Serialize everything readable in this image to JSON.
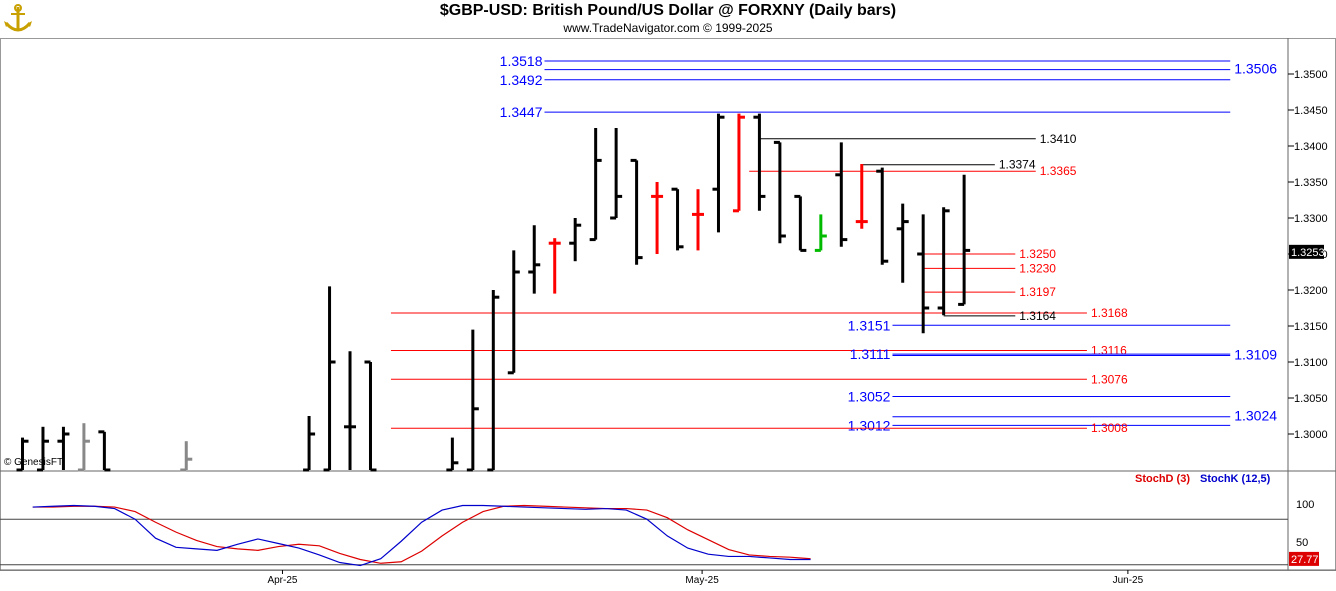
{
  "header": {
    "title": "$GBP-USD:  British Pound/US Dollar @ FORXNY  (Daily bars)",
    "subtitle": "www.TradeNavigator.com © 1999-2025",
    "watermark": "© GenesisFT",
    "logo_icon": "anchor-logo-icon"
  },
  "chart_data": [
    {
      "type": "ohlc",
      "title": "$GBP-USD:  British Pound/US Dollar @ FORXNY  (Daily bars)",
      "ylim": [
        1.295,
        1.355
      ],
      "y_ticks": [
        "1.3500",
        "1.3450",
        "1.3400",
        "1.3350",
        "1.3300",
        "1.3250",
        "1.3200",
        "1.3150",
        "1.3100",
        "1.3050",
        "1.3000"
      ],
      "x_labels": [
        {
          "label": "Apr-25",
          "bar": 12.7
        },
        {
          "label": "May-25",
          "bar": 33.2
        },
        {
          "label": "Jun-25",
          "bar": 54.0
        }
      ],
      "last_price": "1.3253",
      "colors": {
        "up": "#000000",
        "down": "#ff0000",
        "gray": "#888888"
      },
      "bars": [
        {
          "o": 1.295,
          "h": 1.2995,
          "l": 1.295,
          "c": 1.299,
          "color": "#000000"
        },
        {
          "o": 1.295,
          "h": 1.301,
          "l": 1.295,
          "c": 1.299,
          "color": "#000000"
        },
        {
          "o": 1.299,
          "h": 1.301,
          "l": 1.295,
          "c": 1.3,
          "color": "#000000"
        },
        {
          "o": 1.295,
          "h": 1.3015,
          "l": 1.295,
          "c": 1.299,
          "color": "#888888"
        },
        {
          "o": 1.3003,
          "h": 1.3003,
          "l": 1.295,
          "c": 1.295,
          "color": "#000000"
        },
        {
          "o": null,
          "h": null,
          "l": null,
          "c": null,
          "color": "#000000"
        },
        {
          "o": null,
          "h": null,
          "l": null,
          "c": null,
          "color": "#000000"
        },
        {
          "o": null,
          "h": null,
          "l": null,
          "c": null,
          "color": "#000000"
        },
        {
          "o": 1.295,
          "h": 1.299,
          "l": 1.295,
          "c": 1.2965,
          "color": "#888888"
        },
        {
          "o": null,
          "h": null,
          "l": null,
          "c": null,
          "color": "#000000"
        },
        {
          "o": null,
          "h": null,
          "l": null,
          "c": null,
          "color": "#000000"
        },
        {
          "o": null,
          "h": null,
          "l": null,
          "c": null,
          "color": "#000000"
        },
        {
          "o": null,
          "h": null,
          "l": null,
          "c": null,
          "color": "#000000"
        },
        {
          "o": null,
          "h": null,
          "l": null,
          "c": null,
          "color": "#000000"
        },
        {
          "o": 1.295,
          "h": 1.3025,
          "l": 1.295,
          "c": 1.3,
          "color": "#000000"
        },
        {
          "o": 1.295,
          "h": 1.3205,
          "l": 1.295,
          "c": 1.31,
          "color": "#000000"
        },
        {
          "o": 1.301,
          "h": 1.3115,
          "l": 1.295,
          "c": 1.301,
          "color": "#000000"
        },
        {
          "o": 1.31,
          "h": 1.31,
          "l": 1.295,
          "c": 1.295,
          "color": "#000000"
        },
        {
          "o": null,
          "h": null,
          "l": null,
          "c": null,
          "color": "#000000"
        },
        {
          "o": null,
          "h": null,
          "l": null,
          "c": null,
          "color": "#000000"
        },
        {
          "o": null,
          "h": null,
          "l": null,
          "c": null,
          "color": "#000000"
        },
        {
          "o": 1.295,
          "h": 1.2995,
          "l": 1.295,
          "c": 1.296,
          "color": "#000000"
        },
        {
          "o": 1.295,
          "h": 1.3145,
          "l": 1.295,
          "c": 1.3035,
          "color": "#000000"
        },
        {
          "o": 1.295,
          "h": 1.32,
          "l": 1.295,
          "c": 1.319,
          "color": "#000000"
        },
        {
          "o": 1.3085,
          "h": 1.3255,
          "l": 1.3085,
          "c": 1.3225,
          "color": "#000000"
        },
        {
          "o": 1.3225,
          "h": 1.329,
          "l": 1.3195,
          "c": 1.3235,
          "color": "#000000"
        },
        {
          "o": 1.3265,
          "h": 1.3272,
          "l": 1.3195,
          "c": 1.3265,
          "color": "#ff0000"
        },
        {
          "o": 1.3265,
          "h": 1.33,
          "l": 1.324,
          "c": 1.329,
          "color": "#000000"
        },
        {
          "o": 1.327,
          "h": 1.3425,
          "l": 1.327,
          "c": 1.338,
          "color": "#000000"
        },
        {
          "o": 1.33,
          "h": 1.3425,
          "l": 1.33,
          "c": 1.333,
          "color": "#000000"
        },
        {
          "o": 1.338,
          "h": 1.338,
          "l": 1.3235,
          "c": 1.3245,
          "color": "#000000"
        },
        {
          "o": 1.333,
          "h": 1.335,
          "l": 1.325,
          "c": 1.333,
          "color": "#ff0000"
        },
        {
          "o": 1.334,
          "h": 1.334,
          "l": 1.3255,
          "c": 1.326,
          "color": "#000000"
        },
        {
          "o": 1.3305,
          "h": 1.334,
          "l": 1.3255,
          "c": 1.3305,
          "color": "#ff0000"
        },
        {
          "o": 1.334,
          "h": 1.3445,
          "l": 1.328,
          "c": 1.344,
          "color": "#000000"
        },
        {
          "o": 1.331,
          "h": 1.3445,
          "l": 1.331,
          "c": 1.344,
          "color": "#ff0000"
        },
        {
          "o": 1.344,
          "h": 1.3445,
          "l": 1.331,
          "c": 1.333,
          "color": "#000000"
        },
        {
          "o": 1.3405,
          "h": 1.3405,
          "l": 1.3265,
          "c": 1.3275,
          "color": "#000000"
        },
        {
          "o": 1.333,
          "h": 1.333,
          "l": 1.3255,
          "c": 1.3255,
          "color": "#000000"
        },
        {
          "o": 1.3255,
          "h": 1.3305,
          "l": 1.3255,
          "c": 1.3275,
          "color": "#00bb00"
        },
        {
          "o": 1.336,
          "h": 1.3405,
          "l": 1.326,
          "c": 1.327,
          "color": "#000000"
        },
        {
          "o": 1.3295,
          "h": 1.3375,
          "l": 1.3285,
          "c": 1.3295,
          "color": "#ff0000"
        },
        {
          "o": 1.3365,
          "h": 1.337,
          "l": 1.3235,
          "c": 1.324,
          "color": "#000000"
        },
        {
          "o": 1.3285,
          "h": 1.332,
          "l": 1.321,
          "c": 1.3295,
          "color": "#000000"
        },
        {
          "o": 1.325,
          "h": 1.3305,
          "l": 1.314,
          "c": 1.3175,
          "color": "#000000"
        },
        {
          "o": 1.3175,
          "h": 1.3315,
          "l": 1.3165,
          "c": 1.331,
          "color": "#000000"
        },
        {
          "o": 1.318,
          "h": 1.336,
          "l": 1.318,
          "c": 1.3255,
          "color": "#000000"
        }
      ],
      "levels": [
        {
          "value": 1.3518,
          "label": "1.3518",
          "color": "#0000ff",
          "label_side": "left",
          "from_bar": 25.5,
          "to_bar": 59.0
        },
        {
          "value": 1.3506,
          "label": "1.3506",
          "color": "#0000ff",
          "label_side": "right",
          "from_bar": 25.5,
          "to_bar": 59.0
        },
        {
          "value": 1.3492,
          "label": "1.3492",
          "color": "#0000ff",
          "label_side": "left",
          "from_bar": 25.5,
          "to_bar": 59.0
        },
        {
          "value": 1.3447,
          "label": "1.3447",
          "color": "#0000ff",
          "label_side": "left",
          "from_bar": 25.5,
          "to_bar": 59.0
        },
        {
          "value": 1.341,
          "label": "1.3410",
          "color": "#000000",
          "label_side": "right",
          "from_bar": 36.0,
          "to_bar": 49.5
        },
        {
          "value": 1.3374,
          "label": "1.3374",
          "color": "#000000",
          "label_side": "right",
          "from_bar": 41.0,
          "to_bar": 47.5
        },
        {
          "value": 1.3365,
          "label": "1.3365",
          "color": "#ff0000",
          "label_side": "right",
          "from_bar": 35.5,
          "to_bar": 49.5
        },
        {
          "value": 1.325,
          "label": "1.3250",
          "color": "#ff0000",
          "label_side": "right",
          "from_bar": 44.0,
          "to_bar": 48.5
        },
        {
          "value": 1.323,
          "label": "1.3230",
          "color": "#ff0000",
          "label_side": "right",
          "from_bar": 44.0,
          "to_bar": 48.5
        },
        {
          "value": 1.3197,
          "label": "1.3197",
          "color": "#ff0000",
          "label_side": "right",
          "from_bar": 44.0,
          "to_bar": 48.5
        },
        {
          "value": 1.3168,
          "label": "1.3168",
          "color": "#ff0000",
          "label_side": "right",
          "from_bar": 18.0,
          "to_bar": 52.0
        },
        {
          "value": 1.3164,
          "label": "1.3164",
          "color": "#000000",
          "label_side": "right",
          "from_bar": 45.0,
          "to_bar": 48.5
        },
        {
          "value": 1.3151,
          "label": "1.3151",
          "color": "#0000ff",
          "label_side": "left",
          "from_bar": 42.5,
          "to_bar": 59.0
        },
        {
          "value": 1.3116,
          "label": "1.3116",
          "color": "#ff0000",
          "label_side": "right",
          "from_bar": 18.0,
          "to_bar": 52.0
        },
        {
          "value": 1.3111,
          "label": "1.3111",
          "color": "#0000ff",
          "label_side": "left",
          "from_bar": 42.5,
          "to_bar": 59.0
        },
        {
          "value": 1.3109,
          "label": "1.3109",
          "color": "#0000ff",
          "label_side": "right",
          "from_bar": 42.5,
          "to_bar": 59.0
        },
        {
          "value": 1.3076,
          "label": "1.3076",
          "color": "#ff0000",
          "label_side": "right",
          "from_bar": 18.0,
          "to_bar": 52.0
        },
        {
          "value": 1.3052,
          "label": "1.3052",
          "color": "#0000ff",
          "label_side": "left",
          "from_bar": 42.5,
          "to_bar": 59.0
        },
        {
          "value": 1.3024,
          "label": "1.3024",
          "color": "#0000ff",
          "label_side": "right",
          "from_bar": 42.5,
          "to_bar": 59.0
        },
        {
          "value": 1.3012,
          "label": "1.3012",
          "color": "#0000ff",
          "label_side": "left",
          "from_bar": 42.5,
          "to_bar": 59.0
        },
        {
          "value": 1.3008,
          "label": "1.3008",
          "color": "#ff0000",
          "label_side": "right",
          "from_bar": 18.0,
          "to_bar": 52.0
        }
      ]
    },
    {
      "type": "line",
      "ylim": [
        20,
        100
      ],
      "y_ticks": [
        "100",
        "50"
      ],
      "last_value": "27.77",
      "series": [
        {
          "name": "StochD (3)",
          "color": "#dd0000",
          "values": [
            96,
            96,
            97,
            97,
            96,
            90,
            76,
            63,
            52,
            44,
            41,
            39,
            44,
            47,
            45,
            35,
            27,
            22,
            24,
            38,
            58,
            76,
            90,
            97,
            98,
            97,
            96,
            95,
            94,
            94,
            92,
            82,
            66,
            53,
            40,
            33,
            31,
            30,
            28
          ]
        },
        {
          "name": "StochK (12,5)",
          "color": "#0000cc",
          "values": [
            96,
            97,
            98,
            97,
            94,
            80,
            55,
            43,
            41,
            39,
            47,
            54,
            48,
            42,
            33,
            23,
            19,
            28,
            51,
            76,
            92,
            98,
            98,
            97,
            96,
            95,
            94,
            93,
            94,
            92,
            80,
            58,
            42,
            34,
            31,
            31,
            29,
            27,
            27
          ]
        }
      ],
      "series_x": [
        0.5,
        1.5,
        2.5,
        3.5,
        4.5,
        5.5,
        6.5,
        7.5,
        8.5,
        9.5,
        10.5,
        11.5,
        12.5,
        13.5,
        14.5,
        15.5,
        16.5,
        17.5,
        18.5,
        19.5,
        20.5,
        21.5,
        22.5,
        23.5,
        24.5,
        25.5,
        26.5,
        27.5,
        28.5,
        29.5,
        30.5,
        31.5,
        32.5,
        33.5,
        34.5,
        35.5,
        36.5,
        37.5,
        38.5
      ]
    }
  ]
}
